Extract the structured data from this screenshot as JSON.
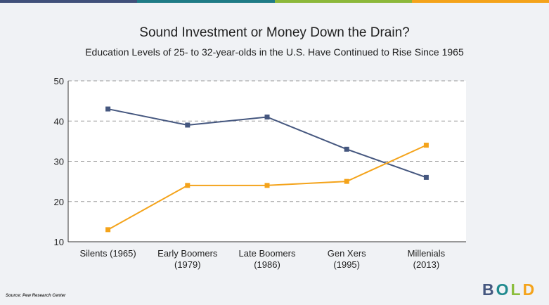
{
  "top_bar_colors": [
    "#40507a",
    "#1f7b86",
    "#8cb83a",
    "#f4a31a"
  ],
  "title": "Sound Investment or Money Down the Drain?",
  "subtitle": "Education Levels of 25- to 32-year-olds in the U.S. Have Continued to Rise Since 1965",
  "source": "Source: Pew Research Center",
  "logo": {
    "letters": [
      {
        "char": "B",
        "color": "#45577f"
      },
      {
        "char": "O",
        "color": "#1f8a8e"
      },
      {
        "char": "L",
        "color": "#8bbd3c"
      },
      {
        "char": "D",
        "color": "#f4a31a"
      }
    ]
  },
  "chart_data": {
    "type": "line",
    "categories": [
      [
        "Silents (1965)"
      ],
      [
        "Early Boomers",
        "(1979)"
      ],
      [
        "Late Boomers",
        "(1986)"
      ],
      [
        "Gen Xers",
        "(1995)"
      ],
      [
        "Millenials",
        "(2013)"
      ]
    ],
    "series": [
      {
        "name": "blue series",
        "color": "#45577f",
        "values": [
          43,
          39,
          41,
          33,
          26
        ]
      },
      {
        "name": "orange series",
        "color": "#f4a31a",
        "values": [
          13,
          24,
          24,
          25,
          34
        ]
      }
    ],
    "ylim": [
      10,
      50
    ],
    "yticks": [
      "50",
      "40",
      "30",
      "20",
      "10"
    ],
    "grid": true,
    "xlabel": "",
    "ylabel": ""
  }
}
